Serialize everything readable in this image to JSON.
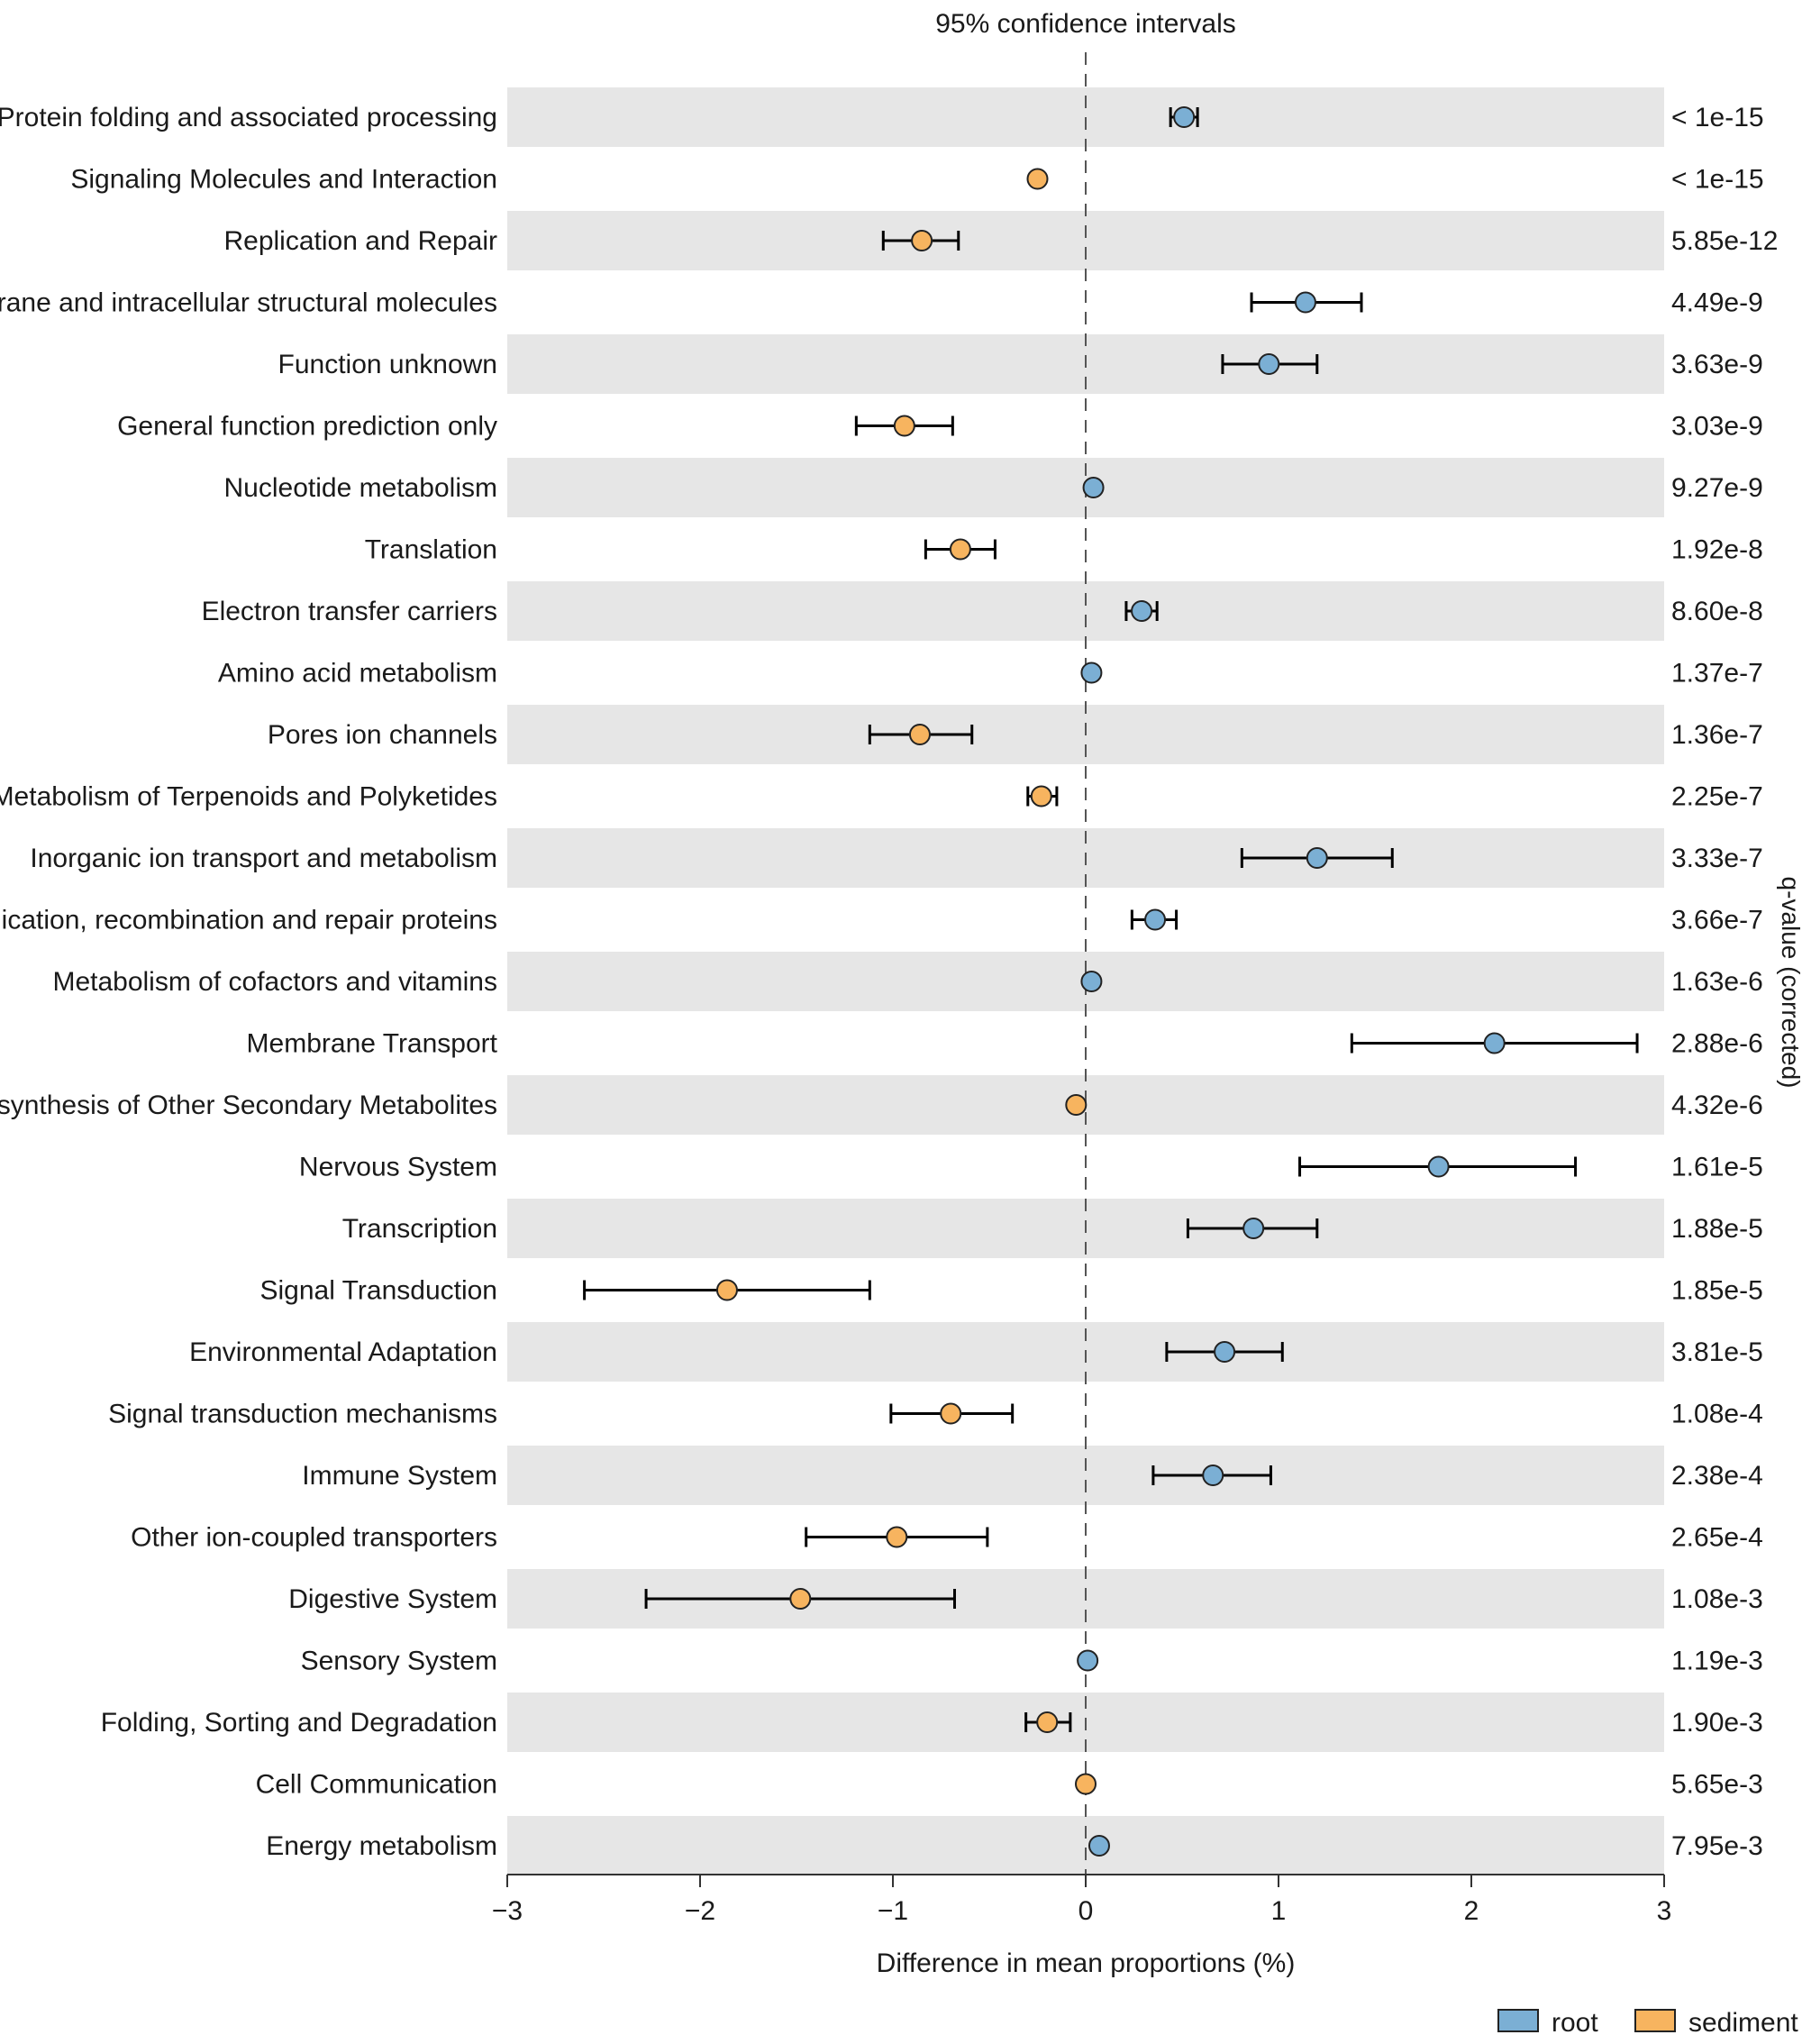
{
  "chart_data": {
    "type": "scatter",
    "title": "95% confidence intervals",
    "xlabel": "Difference in mean proportions (%)",
    "ylabel_right": "q-value (corrected)",
    "xlim": [
      -3,
      3
    ],
    "xticks": [
      -3,
      -2,
      -1,
      0,
      1,
      2,
      3
    ],
    "xtick_labels": [
      "−3",
      "−2",
      "−1",
      "0",
      "1",
      "2",
      "3"
    ],
    "legend": [
      {
        "name": "root",
        "color": "#7bafd4"
      },
      {
        "name": "sediment",
        "color": "#f7b45f"
      }
    ],
    "colors": {
      "root": "#7bafd4",
      "sediment": "#f7b45f",
      "band": "#e6e6e6",
      "errorbar": "#000000"
    },
    "rows": [
      {
        "label": "Protein folding and associated processing",
        "mean": 0.51,
        "ci": [
          0.44,
          0.58
        ],
        "group": "root",
        "q": "< 1e-15"
      },
      {
        "label": "Signaling Molecules and Interaction",
        "mean": -0.25,
        "ci": [
          -0.25,
          -0.25
        ],
        "group": "sediment",
        "q": "< 1e-15"
      },
      {
        "label": "Replication and Repair",
        "mean": -0.85,
        "ci": [
          -1.05,
          -0.66
        ],
        "group": "sediment",
        "q": "5.85e-12"
      },
      {
        "label": "Membrane and intracellular structural molecules",
        "mean": 1.14,
        "ci": [
          0.86,
          1.43
        ],
        "group": "root",
        "q": "4.49e-9"
      },
      {
        "label": "Function unknown",
        "mean": 0.95,
        "ci": [
          0.71,
          1.2
        ],
        "group": "root",
        "q": "3.63e-9"
      },
      {
        "label": "General function prediction only",
        "mean": -0.94,
        "ci": [
          -1.19,
          -0.69
        ],
        "group": "sediment",
        "q": "3.03e-9"
      },
      {
        "label": "Nucleotide metabolism",
        "mean": 0.04,
        "ci": [
          0.04,
          0.04
        ],
        "group": "root",
        "q": "9.27e-9"
      },
      {
        "label": "Translation",
        "mean": -0.65,
        "ci": [
          -0.83,
          -0.47
        ],
        "group": "sediment",
        "q": "1.92e-8"
      },
      {
        "label": "Electron transfer carriers",
        "mean": 0.29,
        "ci": [
          0.21,
          0.37
        ],
        "group": "root",
        "q": "8.60e-8"
      },
      {
        "label": "Amino acid metabolism",
        "mean": 0.03,
        "ci": [
          0.03,
          0.03
        ],
        "group": "root",
        "q": "1.37e-7"
      },
      {
        "label": "Pores ion channels",
        "mean": -0.86,
        "ci": [
          -1.12,
          -0.59
        ],
        "group": "sediment",
        "q": "1.36e-7"
      },
      {
        "label": "Metabolism of Terpenoids and Polyketides",
        "mean": -0.23,
        "ci": [
          -0.3,
          -0.15
        ],
        "group": "sediment",
        "q": "2.25e-7"
      },
      {
        "label": "Inorganic ion transport and metabolism",
        "mean": 1.2,
        "ci": [
          0.81,
          1.59
        ],
        "group": "root",
        "q": "3.33e-7"
      },
      {
        "label": "Replication, recombination and repair proteins",
        "mean": 0.36,
        "ci": [
          0.24,
          0.47
        ],
        "group": "root",
        "q": "3.66e-7"
      },
      {
        "label": "Metabolism of cofactors and vitamins",
        "mean": 0.03,
        "ci": [
          0.03,
          0.03
        ],
        "group": "root",
        "q": "1.63e-6"
      },
      {
        "label": "Membrane Transport",
        "mean": 2.12,
        "ci": [
          1.38,
          2.86
        ],
        "group": "root",
        "q": "2.88e-6"
      },
      {
        "label": "Biosynthesis of Other Secondary Metabolites",
        "mean": -0.05,
        "ci": [
          -0.05,
          -0.05
        ],
        "group": "sediment",
        "q": "4.32e-6"
      },
      {
        "label": "Nervous System",
        "mean": 1.83,
        "ci": [
          1.11,
          2.54
        ],
        "group": "root",
        "q": "1.61e-5"
      },
      {
        "label": "Transcription",
        "mean": 0.87,
        "ci": [
          0.53,
          1.2
        ],
        "group": "root",
        "q": "1.88e-5"
      },
      {
        "label": "Signal Transduction",
        "mean": -1.86,
        "ci": [
          -2.6,
          -1.12
        ],
        "group": "sediment",
        "q": "1.85e-5"
      },
      {
        "label": "Environmental Adaptation",
        "mean": 0.72,
        "ci": [
          0.42,
          1.02
        ],
        "group": "root",
        "q": "3.81e-5"
      },
      {
        "label": "Signal transduction mechanisms",
        "mean": -0.7,
        "ci": [
          -1.01,
          -0.38
        ],
        "group": "sediment",
        "q": "1.08e-4"
      },
      {
        "label": "Immune System",
        "mean": 0.66,
        "ci": [
          0.35,
          0.96
        ],
        "group": "root",
        "q": "2.38e-4"
      },
      {
        "label": "Other ion-coupled transporters",
        "mean": -0.98,
        "ci": [
          -1.45,
          -0.51
        ],
        "group": "sediment",
        "q": "2.65e-4"
      },
      {
        "label": "Digestive System",
        "mean": -1.48,
        "ci": [
          -2.28,
          -0.68
        ],
        "group": "sediment",
        "q": "1.08e-3"
      },
      {
        "label": "Sensory System",
        "mean": 0.01,
        "ci": [
          0.01,
          0.01
        ],
        "group": "root",
        "q": "1.19e-3"
      },
      {
        "label": "Folding, Sorting and Degradation",
        "mean": -0.2,
        "ci": [
          -0.31,
          -0.08
        ],
        "group": "sediment",
        "q": "1.90e-3"
      },
      {
        "label": "Cell Communication",
        "mean": 0.0,
        "ci": [
          0.0,
          0.0
        ],
        "group": "sediment",
        "q": "5.65e-3"
      },
      {
        "label": "Energy metabolism",
        "mean": 0.07,
        "ci": [
          0.07,
          0.07
        ],
        "group": "root",
        "q": "7.95e-3"
      }
    ]
  }
}
